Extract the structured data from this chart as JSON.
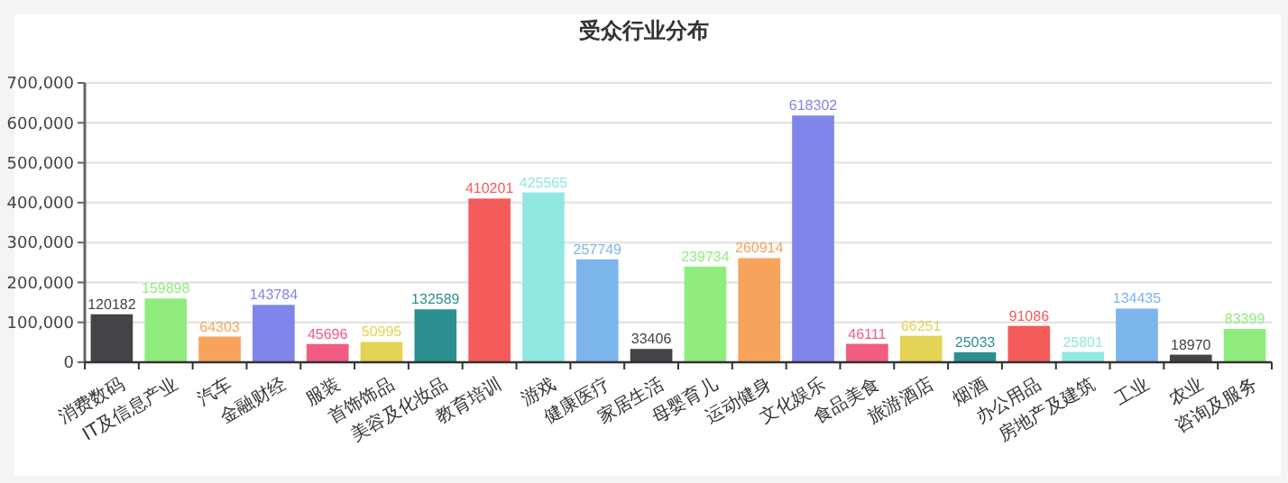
{
  "chart_data": {
    "type": "bar",
    "title": "受众行业分布",
    "categories": [
      "消费数码",
      "IT及信息产业",
      "汽车",
      "金融财经",
      "服装",
      "首饰饰品",
      "美容及化妆品",
      "教育培训",
      "游戏",
      "健康医疗",
      "家居生活",
      "母婴育儿",
      "运动健身",
      "文化娱乐",
      "食品美食",
      "旅游酒店",
      "烟酒",
      "办公用品",
      "房地产及建筑",
      "工业",
      "农业",
      "咨询及服务"
    ],
    "values": [
      120182,
      159898,
      64303,
      143784,
      45696,
      50995,
      132589,
      410201,
      425565,
      257749,
      33406,
      239734,
      260914,
      618302,
      46111,
      66251,
      25033,
      91086,
      25801,
      134435,
      18970,
      83399
    ],
    "colors": [
      "#434348",
      "#90ed7d",
      "#f7a35c",
      "#8085e9",
      "#f15c80",
      "#e4d354",
      "#2b908f",
      "#f45b5b",
      "#91e8e1",
      "#7cb5ec",
      "#434348",
      "#90ed7d",
      "#f7a35c",
      "#8085e9",
      "#f15c80",
      "#e4d354",
      "#2b908f",
      "#f45b5b",
      "#91e8e1",
      "#7cb5ec",
      "#434348",
      "#90ed7d"
    ],
    "ylim": [
      0,
      700000
    ],
    "yticks": [
      0,
      {
        "value": 100000,
        "label": "100,000"
      },
      {
        "value": 200000,
        "label": "200,000"
      },
      {
        "value": 300000,
        "label": "300,000"
      },
      {
        "value": 400000,
        "label": "400,000"
      },
      {
        "value": 500000,
        "label": "500,000"
      },
      {
        "value": 600000,
        "label": "600,000"
      },
      {
        "value": 700000,
        "label": "700,000"
      }
    ],
    "grid": "y",
    "data_labels": true
  }
}
